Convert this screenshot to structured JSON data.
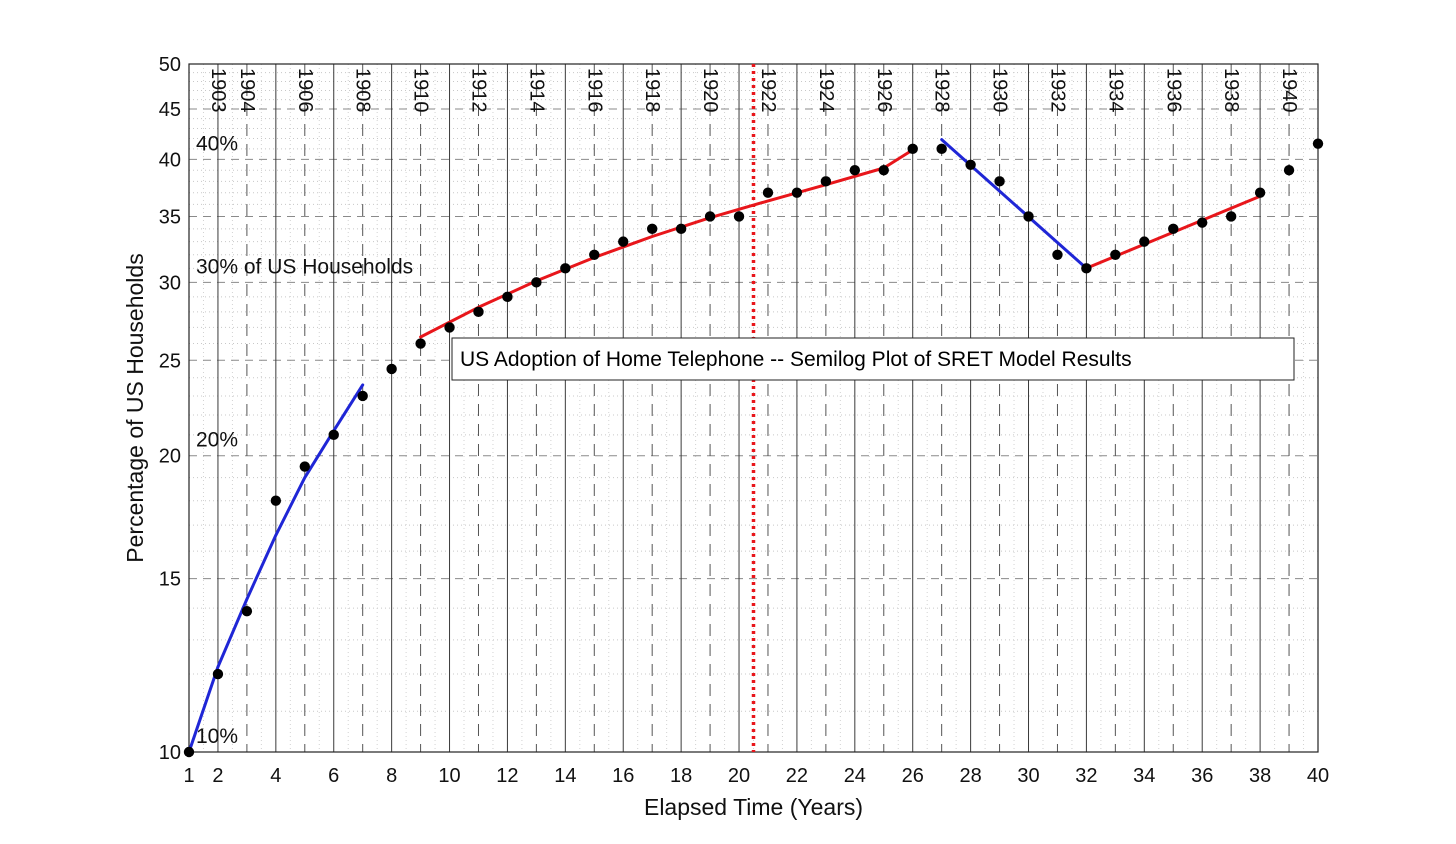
{
  "chart_data": {
    "type": "scatter",
    "title": "US Adoption of Home Telephone -- Semilog Plot of SRET Model Results",
    "xlabel": "Elapsed Time (Years)",
    "ylabel": "Percentage of US Households",
    "xlim": [
      1,
      40
    ],
    "ylim": [
      10,
      50
    ],
    "yscale": "log",
    "grid": true,
    "x_ticks": [
      1,
      2,
      4,
      6,
      8,
      10,
      12,
      14,
      16,
      18,
      20,
      22,
      24,
      26,
      28,
      30,
      32,
      34,
      36,
      38,
      40
    ],
    "y_ticks": [
      10,
      15,
      20,
      25,
      30,
      35,
      40,
      45,
      50
    ],
    "year_labels": [
      {
        "x": 2,
        "label": "1903"
      },
      {
        "x": 3,
        "label": "1904"
      },
      {
        "x": 5,
        "label": "1906"
      },
      {
        "x": 7,
        "label": "1908"
      },
      {
        "x": 9,
        "label": "1910"
      },
      {
        "x": 11,
        "label": "1912"
      },
      {
        "x": 13,
        "label": "1914"
      },
      {
        "x": 15,
        "label": "1916"
      },
      {
        "x": 17,
        "label": "1918"
      },
      {
        "x": 19,
        "label": "1920"
      },
      {
        "x": 21,
        "label": "1922"
      },
      {
        "x": 23,
        "label": "1924"
      },
      {
        "x": 25,
        "label": "1926"
      },
      {
        "x": 27,
        "label": "1928"
      },
      {
        "x": 29,
        "label": "1930"
      },
      {
        "x": 31,
        "label": "1932"
      },
      {
        "x": 33,
        "label": "1934"
      },
      {
        "x": 35,
        "label": "1936"
      },
      {
        "x": 37,
        "label": "1938"
      },
      {
        "x": 39,
        "label": "1940"
      }
    ],
    "annotations": [
      {
        "text": "40%",
        "x": 1.2,
        "y": 40
      },
      {
        "text": "30% of US Households",
        "x": 1.2,
        "y": 30
      },
      {
        "text": "20%",
        "x": 1.2,
        "y": 20
      },
      {
        "text": "10%",
        "x": 1.2,
        "y": 10
      }
    ],
    "reference_line": {
      "x": 20.5,
      "color": "#e8161b",
      "style": "dotted"
    },
    "points": [
      {
        "x": 1,
        "y": 10.0
      },
      {
        "x": 2,
        "y": 12.0
      },
      {
        "x": 3,
        "y": 13.9
      },
      {
        "x": 4,
        "y": 18.0
      },
      {
        "x": 5,
        "y": 19.5
      },
      {
        "x": 6,
        "y": 21.0
      },
      {
        "x": 7,
        "y": 23.0
      },
      {
        "x": 8,
        "y": 24.5
      },
      {
        "x": 9,
        "y": 26.0
      },
      {
        "x": 10,
        "y": 27.0
      },
      {
        "x": 11,
        "y": 28.0
      },
      {
        "x": 12,
        "y": 29.0
      },
      {
        "x": 13,
        "y": 30.0
      },
      {
        "x": 14,
        "y": 31.0
      },
      {
        "x": 15,
        "y": 32.0
      },
      {
        "x": 16,
        "y": 33.0
      },
      {
        "x": 17,
        "y": 34.0
      },
      {
        "x": 18,
        "y": 34.0
      },
      {
        "x": 19,
        "y": 35.0
      },
      {
        "x": 20,
        "y": 35.0
      },
      {
        "x": 21,
        "y": 37.0
      },
      {
        "x": 22,
        "y": 37.0
      },
      {
        "x": 23,
        "y": 38.0
      },
      {
        "x": 24,
        "y": 39.0
      },
      {
        "x": 25,
        "y": 39.0
      },
      {
        "x": 26,
        "y": 41.0
      },
      {
        "x": 27,
        "y": 41.0
      },
      {
        "x": 28,
        "y": 39.5
      },
      {
        "x": 29,
        "y": 38.0
      },
      {
        "x": 30,
        "y": 35.0
      },
      {
        "x": 31,
        "y": 32.0
      },
      {
        "x": 32,
        "y": 31.0
      },
      {
        "x": 33,
        "y": 32.0
      },
      {
        "x": 34,
        "y": 33.0
      },
      {
        "x": 35,
        "y": 34.0
      },
      {
        "x": 36,
        "y": 34.5
      },
      {
        "x": 37,
        "y": 35.0
      },
      {
        "x": 38,
        "y": 37.0
      },
      {
        "x": 39,
        "y": 39.0
      },
      {
        "x": 40,
        "y": 41.5
      }
    ],
    "fit_lines": [
      {
        "color": "#1f26d6",
        "points": [
          [
            1,
            10.0
          ],
          [
            2,
            12.2
          ],
          [
            3,
            14.3
          ],
          [
            4,
            16.6
          ],
          [
            5,
            19.0
          ],
          [
            6,
            21.2
          ],
          [
            7,
            23.6
          ]
        ]
      },
      {
        "color": "#e8161b",
        "points": [
          [
            9,
            26.4
          ],
          [
            11,
            28.3
          ],
          [
            13,
            30.1
          ],
          [
            15,
            31.8
          ],
          [
            17,
            33.4
          ],
          [
            19,
            34.9
          ],
          [
            21,
            36.3
          ],
          [
            23,
            37.7
          ],
          [
            25,
            39.2
          ],
          [
            26,
            40.9
          ]
        ]
      },
      {
        "color": "#1f26d6",
        "points": [
          [
            27,
            41.9
          ],
          [
            32,
            31.0
          ]
        ]
      },
      {
        "color": "#e8161b",
        "points": [
          [
            32,
            31.0
          ],
          [
            34,
            32.8
          ],
          [
            36,
            34.7
          ],
          [
            38,
            36.7
          ]
        ]
      }
    ]
  }
}
